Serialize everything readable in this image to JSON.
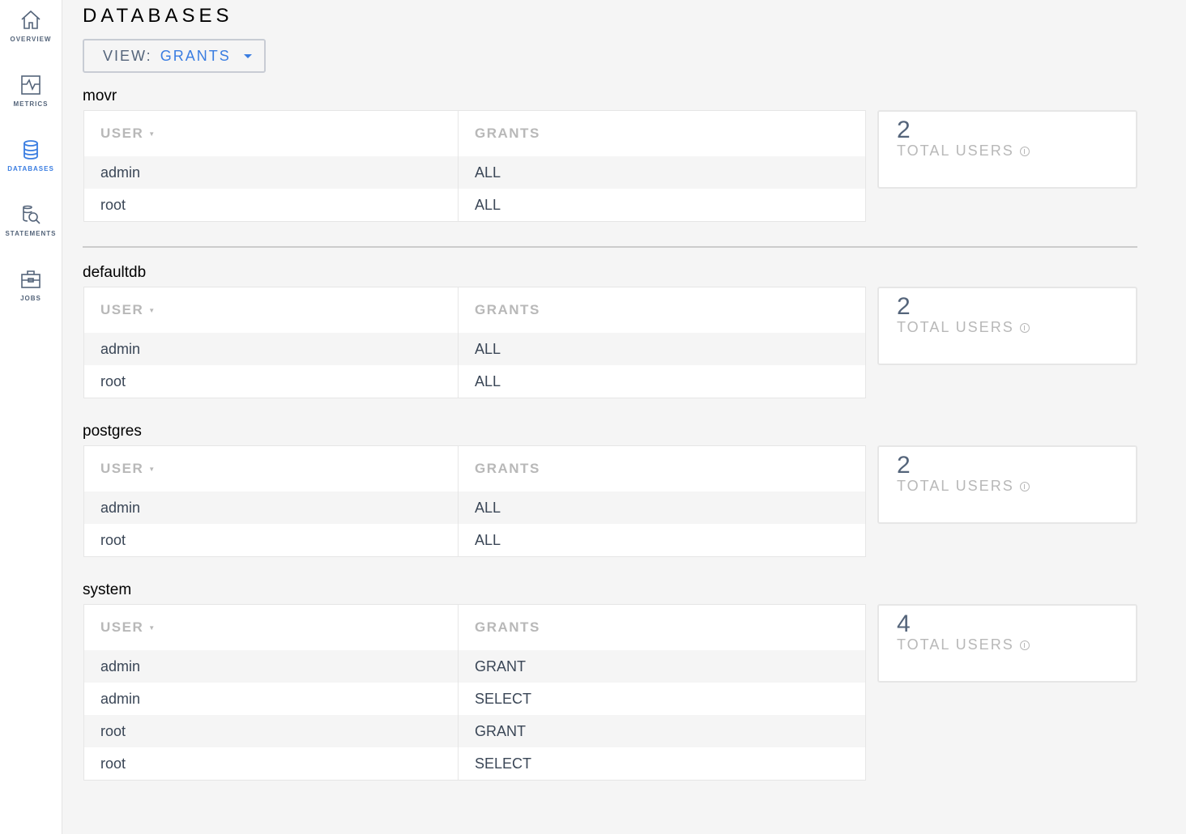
{
  "sidebar": {
    "items": [
      {
        "label": "OVERVIEW",
        "icon": "home-icon"
      },
      {
        "label": "METRICS",
        "icon": "metrics-icon"
      },
      {
        "label": "DATABASES",
        "icon": "database-icon",
        "active": true
      },
      {
        "label": "STATEMENTS",
        "icon": "statements-icon"
      },
      {
        "label": "JOBS",
        "icon": "jobs-icon"
      }
    ]
  },
  "page": {
    "title": "DATABASES",
    "view_label": "VIEW:",
    "view_value": "GRANTS"
  },
  "columns": {
    "user": "USER",
    "grants": "GRANTS"
  },
  "stat_label": "TOTAL USERS",
  "accent": "#3a7de1",
  "databases": [
    {
      "name": "movr",
      "total_users": "2",
      "rows": [
        {
          "user": "admin",
          "grant": "ALL"
        },
        {
          "user": "root",
          "grant": "ALL"
        }
      ]
    },
    {
      "name": "defaultdb",
      "total_users": "2",
      "rows": [
        {
          "user": "admin",
          "grant": "ALL"
        },
        {
          "user": "root",
          "grant": "ALL"
        }
      ]
    },
    {
      "name": "postgres",
      "total_users": "2",
      "rows": [
        {
          "user": "admin",
          "grant": "ALL"
        },
        {
          "user": "root",
          "grant": "ALL"
        }
      ]
    },
    {
      "name": "system",
      "total_users": "4",
      "rows": [
        {
          "user": "admin",
          "grant": "GRANT"
        },
        {
          "user": "admin",
          "grant": "SELECT"
        },
        {
          "user": "root",
          "grant": "GRANT"
        },
        {
          "user": "root",
          "grant": "SELECT"
        }
      ]
    }
  ]
}
